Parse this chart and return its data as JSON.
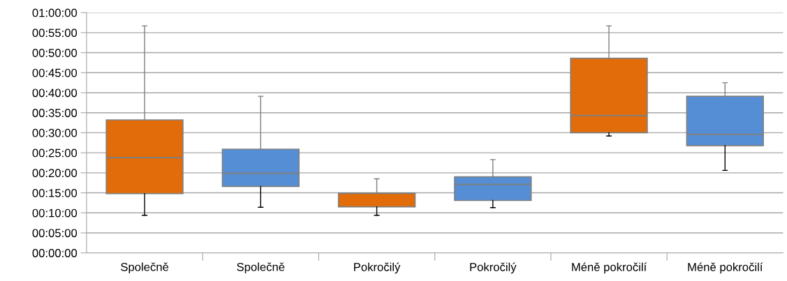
{
  "chart_data": {
    "type": "box",
    "categories": [
      "Společně",
      "Společně",
      "Pokročilý",
      "Pokročilý",
      "Méně pokročilí",
      "Méně pokročilí"
    ],
    "colors": [
      "#e36c0a",
      "#558ed5",
      "#e36c0a",
      "#558ed5",
      "#e36c0a",
      "#558ed5"
    ],
    "boxes": [
      {
        "low": 9.4,
        "q1": 14.8,
        "median": 23.8,
        "q3": 33.2,
        "high": 56.7
      },
      {
        "low": 11.4,
        "q1": 16.6,
        "median": 19.9,
        "q3": 25.9,
        "high": 39.1
      },
      {
        "low": 9.4,
        "q1": 11.5,
        "median": 14.9,
        "q3": 14.9,
        "high": 18.5
      },
      {
        "low": 11.3,
        "q1": 13.1,
        "median": 17.1,
        "q3": 19.0,
        "high": 23.3
      },
      {
        "low": 29.2,
        "q1": 30.0,
        "median": 34.3,
        "q3": 48.6,
        "high": 56.7
      },
      {
        "low": 20.6,
        "q1": 26.8,
        "median": 29.6,
        "q3": 39.1,
        "high": 42.5
      }
    ],
    "ylim": [
      0,
      60
    ],
    "yticks": [
      {
        "value": 0,
        "label": "00:00:00"
      },
      {
        "value": 5,
        "label": "00:05:00"
      },
      {
        "value": 10,
        "label": "00:10:00"
      },
      {
        "value": 15,
        "label": "00:15:00"
      },
      {
        "value": 20,
        "label": "00:20:00"
      },
      {
        "value": 25,
        "label": "00:25:00"
      },
      {
        "value": 30,
        "label": "00:30:00"
      },
      {
        "value": 35,
        "label": "00:35:00"
      },
      {
        "value": 40,
        "label": "00:40:00"
      },
      {
        "value": 45,
        "label": "00:45:00"
      },
      {
        "value": 50,
        "label": "00:50:00"
      },
      {
        "value": 55,
        "label": "00:55:00"
      },
      {
        "value": 60,
        "label": "01:00:00"
      }
    ],
    "grid": "y"
  }
}
